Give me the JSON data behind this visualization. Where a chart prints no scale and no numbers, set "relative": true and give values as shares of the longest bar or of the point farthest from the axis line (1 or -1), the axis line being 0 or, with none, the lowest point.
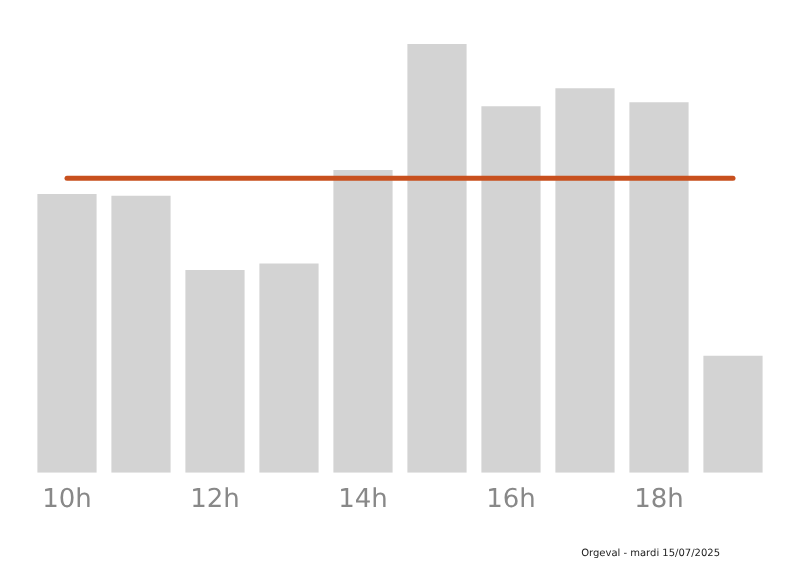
{
  "chart_data": {
    "type": "bar",
    "relative": true,
    "categories": [
      "10h",
      null,
      "12h",
      null,
      "14h",
      null,
      "16h",
      null,
      "18h",
      null
    ],
    "values": [
      0.65,
      0.646,
      0.473,
      0.488,
      0.706,
      1,
      0.855,
      0.897,
      0.864,
      0.273
    ],
    "color": "#d3d3d3",
    "ref_lines": [
      {
        "axis": "y",
        "value": 0.687,
        "color": "#c8501e"
      }
    ],
    "annotations": [
      "Orgeval - mardi 15/07/2025"
    ],
    "grid": false,
    "legend": false
  }
}
